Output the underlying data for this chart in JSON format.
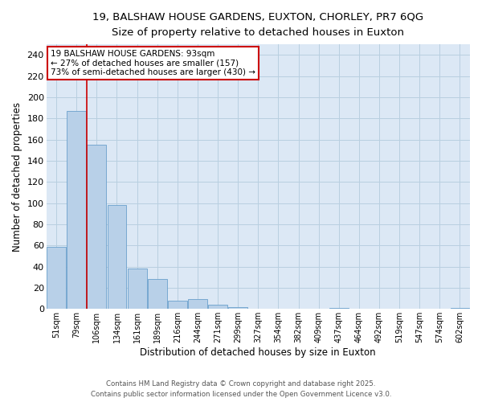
{
  "title_line1": "19, BALSHAW HOUSE GARDENS, EUXTON, CHORLEY, PR7 6QG",
  "title_line2": "Size of property relative to detached houses in Euxton",
  "xlabel": "Distribution of detached houses by size in Euxton",
  "ylabel": "Number of detached properties",
  "categories": [
    "51sqm",
    "79sqm",
    "106sqm",
    "134sqm",
    "161sqm",
    "189sqm",
    "216sqm",
    "244sqm",
    "271sqm",
    "299sqm",
    "327sqm",
    "354sqm",
    "382sqm",
    "409sqm",
    "437sqm",
    "464sqm",
    "492sqm",
    "519sqm",
    "547sqm",
    "574sqm",
    "602sqm"
  ],
  "values": [
    59,
    187,
    155,
    98,
    38,
    28,
    8,
    9,
    4,
    2,
    0,
    0,
    0,
    0,
    1,
    0,
    0,
    0,
    0,
    0,
    1
  ],
  "bar_color": "#b8d0e8",
  "bar_edge_color": "#6aa0cc",
  "red_line_x": 1.5,
  "annotation_text": "19 BALSHAW HOUSE GARDENS: 93sqm\n← 27% of detached houses are smaller (157)\n73% of semi-detached houses are larger (430) →",
  "annotation_box_color": "#ffffff",
  "annotation_box_edge_color": "#cc0000",
  "red_line_color": "#cc0000",
  "ylim": [
    0,
    250
  ],
  "yticks": [
    0,
    20,
    40,
    60,
    80,
    100,
    120,
    140,
    160,
    180,
    200,
    220,
    240
  ],
  "footer_line1": "Contains HM Land Registry data © Crown copyright and database right 2025.",
  "footer_line2": "Contains public sector information licensed under the Open Government Licence v3.0.",
  "background_color": "#ffffff",
  "ax_background_color": "#dce8f5",
  "grid_color": "#b8cfe0"
}
